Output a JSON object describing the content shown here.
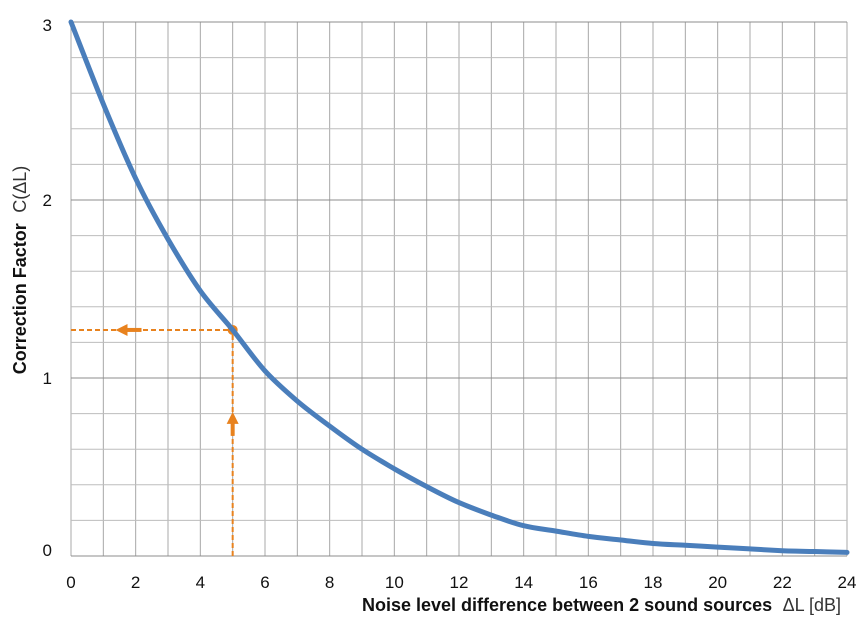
{
  "chart_data": {
    "type": "line",
    "xlabel": {
      "bold": "Noise level difference between 2 sound sources",
      "unit": "ΔL [dB]"
    },
    "ylabel": {
      "bold": "Correction Factor",
      "unit": "C(ΔL)"
    },
    "xlim": [
      0,
      24
    ],
    "ylim": [
      0,
      3
    ],
    "xticks": [
      "0",
      "2",
      "4",
      "6",
      "8",
      "10",
      "12",
      "14",
      "16",
      "18",
      "20",
      "22",
      "24"
    ],
    "yticks": [
      "0",
      "1",
      "2",
      "3"
    ],
    "grid": true,
    "x_grid_step": 1,
    "y_grid_step": 0.2,
    "series": [
      {
        "color": "#4a7ebb",
        "x": [
          0,
          1,
          2,
          3,
          4,
          5,
          6,
          7,
          8,
          9,
          10,
          11,
          12,
          13,
          14,
          15,
          16,
          17,
          18,
          19,
          20,
          21,
          22,
          23,
          24
        ],
        "y": [
          3.0,
          2.54,
          2.12,
          1.78,
          1.49,
          1.27,
          1.04,
          0.87,
          0.73,
          0.6,
          0.49,
          0.39,
          0.3,
          0.23,
          0.17,
          0.14,
          0.11,
          0.09,
          0.07,
          0.06,
          0.05,
          0.04,
          0.03,
          0.025,
          0.02
        ]
      }
    ],
    "annotation": {
      "x": 5,
      "y": 1.27,
      "color": "#e8821e"
    }
  }
}
